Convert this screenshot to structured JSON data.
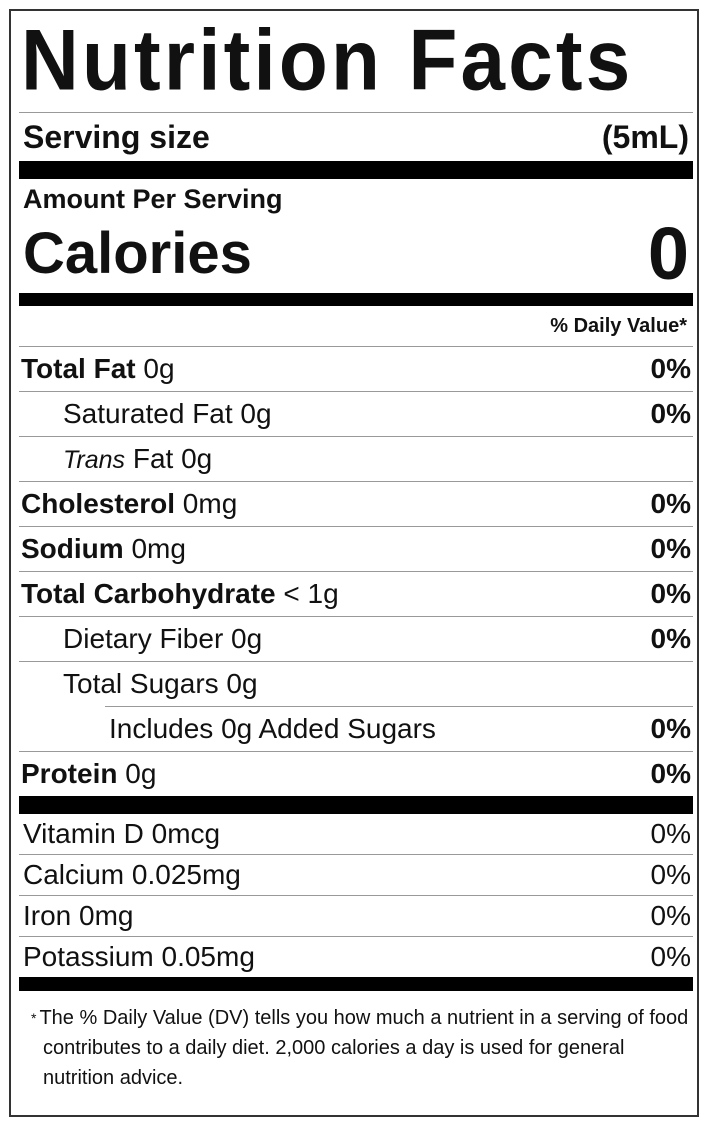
{
  "title": "Nutrition Facts",
  "serving": {
    "label": "Serving size",
    "value": "(5mL)"
  },
  "amount_per_serving": "Amount Per Serving",
  "calories": {
    "label": "Calories",
    "value": "0"
  },
  "daily_value_header": "% Daily Value*",
  "nutrients": [
    {
      "name": "Total Fat",
      "amount": "0g",
      "dv": "0%",
      "bold": true,
      "indent": 0
    },
    {
      "name": "Saturated Fat",
      "amount": "0g",
      "dv": "0%",
      "bold": false,
      "indent": 1
    },
    {
      "name": "Trans",
      "name_suffix": "Fat",
      "amount": "0g",
      "dv": "",
      "bold": false,
      "italic": true,
      "indent": 1
    },
    {
      "name": "Cholesterol",
      "amount": "0mg",
      "dv": "0%",
      "bold": true,
      "indent": 0
    },
    {
      "name": "Sodium",
      "amount": "0mg",
      "dv": "0%",
      "bold": true,
      "indent": 0
    },
    {
      "name": "Total Carbohydrate",
      "amount": "< 1g",
      "dv": "0%",
      "bold": true,
      "indent": 0
    },
    {
      "name": "Dietary Fiber",
      "amount": "0g",
      "dv": "0%",
      "bold": false,
      "indent": 1
    },
    {
      "name": "Total Sugars",
      "amount": "0g",
      "dv": "",
      "bold": false,
      "indent": 1
    },
    {
      "name": "Includes 0g Added Sugars",
      "amount": "",
      "dv": "0%",
      "bold": false,
      "indent": 2
    },
    {
      "name": "Protein",
      "amount": "0g",
      "dv": "0%",
      "bold": true,
      "indent": 0
    }
  ],
  "vitamins": [
    {
      "name": "Vitamin D",
      "amount": "0mcg",
      "dv": "0%"
    },
    {
      "name": "Calcium",
      "amount": "0.025mg",
      "dv": "0%"
    },
    {
      "name": "Iron",
      "amount": "0mg",
      "dv": "0%"
    },
    {
      "name": "Potassium",
      "amount": "0.05mg",
      "dv": "0%"
    }
  ],
  "footnote": {
    "star": "*",
    "text": "The % Daily Value (DV) tells you how much a nutrient in a serving of food contributes to a daily diet. 2,000 calories a day is used for general nutrition advice."
  }
}
